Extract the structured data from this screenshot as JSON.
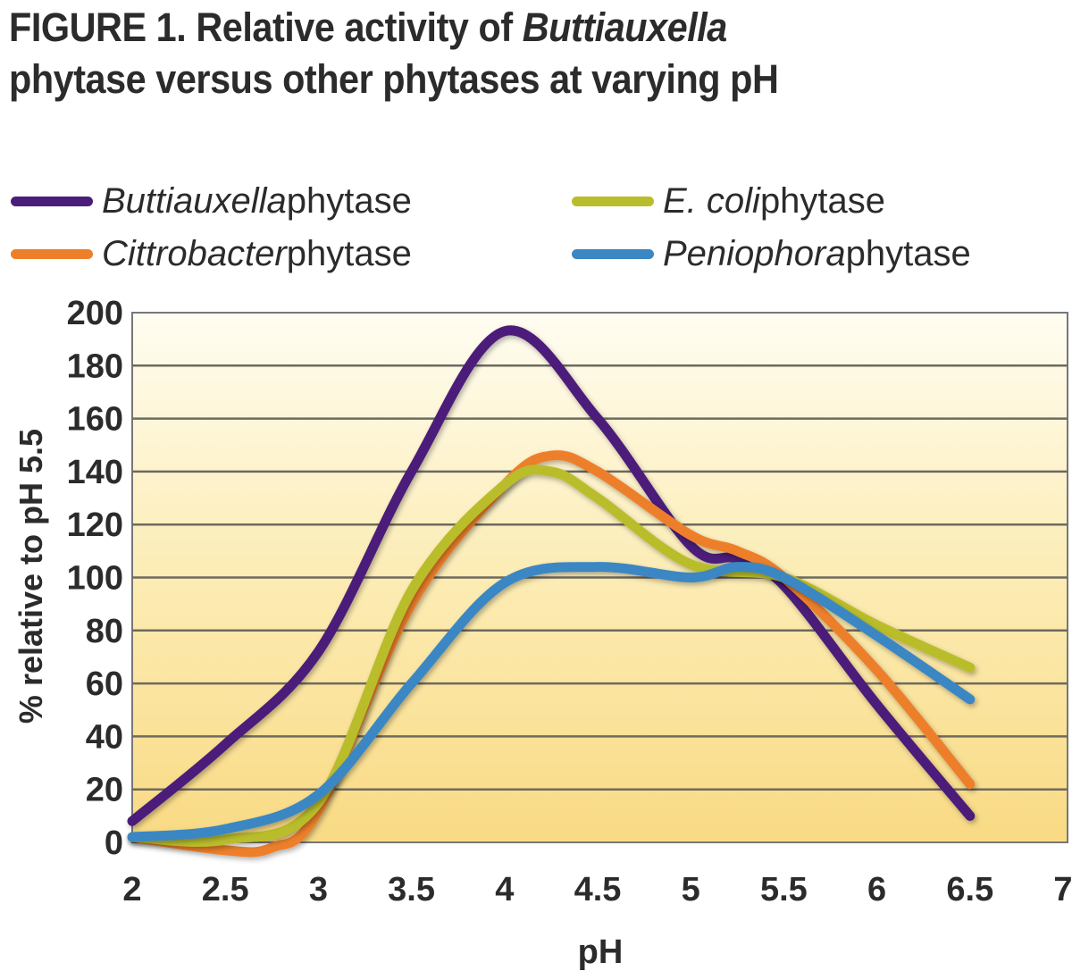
{
  "title": {
    "line1_prefix": "FIGURE 1. Relative activity of ",
    "line1_italic": "Buttiauxella",
    "line2": "phytase versus other phytases at varying pH"
  },
  "legend": [
    {
      "italic": "Buttiauxella",
      "rest": " phytase",
      "color": "#4b1d7a"
    },
    {
      "italic": "Cittrobacter",
      "rest": " phytase",
      "color": "#ee7f2a"
    },
    {
      "italic": "E. coli",
      "rest": " phytase",
      "color": "#b9bd2c"
    },
    {
      "italic": "Peniophora",
      "rest": " phytase",
      "color": "#3a87c4"
    }
  ],
  "chart_data": {
    "type": "line",
    "title": "FIGURE 1. Relative activity of Buttiauxella phytase versus other phytases at varying pH",
    "xlabel": "pH",
    "ylabel": "% relative to pH 5.5",
    "xlim": [
      2,
      7
    ],
    "ylim": [
      0,
      200
    ],
    "xticks": [
      "2",
      "2.5",
      "3",
      "3.5",
      "4",
      "4.5",
      "5",
      "5.5",
      "6",
      "6.5",
      "7"
    ],
    "yticks": [
      "0",
      "20",
      "40",
      "60",
      "80",
      "100",
      "120",
      "140",
      "160",
      "180",
      "200"
    ],
    "grid": "horizontal",
    "legend_position": "top",
    "series": [
      {
        "name": "Buttiauxella phytase",
        "color": "#4b1d7a",
        "x": [
          2,
          2.5,
          3,
          3.5,
          4,
          4.5,
          5,
          5.25,
          5.5,
          6,
          6.5
        ],
        "y": [
          8,
          37,
          72,
          140,
          193,
          160,
          112,
          107,
          97,
          52,
          10
        ]
      },
      {
        "name": "Cittrobacter phytase",
        "color": "#ee7f2a",
        "x": [
          2,
          2.5,
          2.75,
          3,
          3.5,
          4,
          4.25,
          4.5,
          5,
          5.25,
          5.5,
          6,
          6.5
        ],
        "y": [
          2,
          -3,
          -2,
          12,
          90,
          135,
          146,
          140,
          116,
          110,
          100,
          65,
          22
        ]
      },
      {
        "name": "E. coli phytase",
        "color": "#b9bd2c",
        "x": [
          2,
          2.5,
          3,
          3.5,
          4,
          4.25,
          4.5,
          5,
          5.5,
          6,
          6.5
        ],
        "y": [
          2,
          1,
          15,
          95,
          135,
          140,
          130,
          105,
          100,
          82,
          66
        ]
      },
      {
        "name": "Peniophora phytase",
        "color": "#3a87c4",
        "x": [
          2,
          2.5,
          3,
          3.5,
          4,
          4.5,
          5,
          5.25,
          5.5,
          6,
          6.5
        ],
        "y": [
          2,
          5,
          18,
          60,
          98,
          104,
          100,
          104,
          100,
          78,
          54
        ]
      }
    ]
  }
}
